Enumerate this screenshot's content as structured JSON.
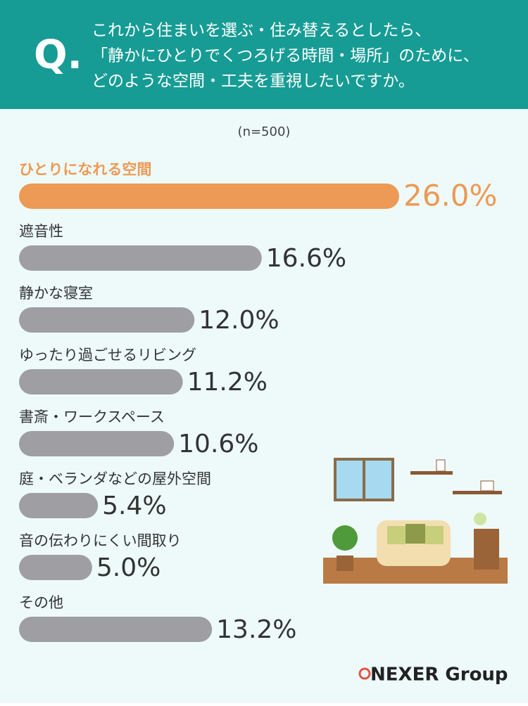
{
  "chart_data": {
    "type": "bar",
    "orientation": "horizontal",
    "badge": "Q.",
    "title": [
      "これから住まいを選ぶ・住み替えるとしたら、",
      "「静かにひとりでくつろげる時間・場所」のために、",
      "どのような空間・工夫を重視したいですか。"
    ],
    "subtitle": "(n=500)",
    "categories": [
      "ひとりになれる空間",
      "遮音性",
      "静かな寝室",
      "ゆったり過ごせるリビング",
      "書斎・ワークスペース",
      "庭・ベランダなどの屋外空間",
      "音の伝わりにくい間取り",
      "その他"
    ],
    "values": [
      26.0,
      16.6,
      12.0,
      11.2,
      10.6,
      5.4,
      5.0,
      13.2
    ],
    "value_labels": [
      "26.0%",
      "16.6%",
      "12.0%",
      "11.2%",
      "10.6%",
      "5.4%",
      "5.0%",
      "13.2%"
    ],
    "colors": [
      "#ec9a55",
      "#9e9ea3",
      "#9e9ea3",
      "#9e9ea3",
      "#9e9ea3",
      "#9e9ea3",
      "#9e9ea3",
      "#9e9ea3"
    ],
    "logo": "NEXER Group"
  }
}
